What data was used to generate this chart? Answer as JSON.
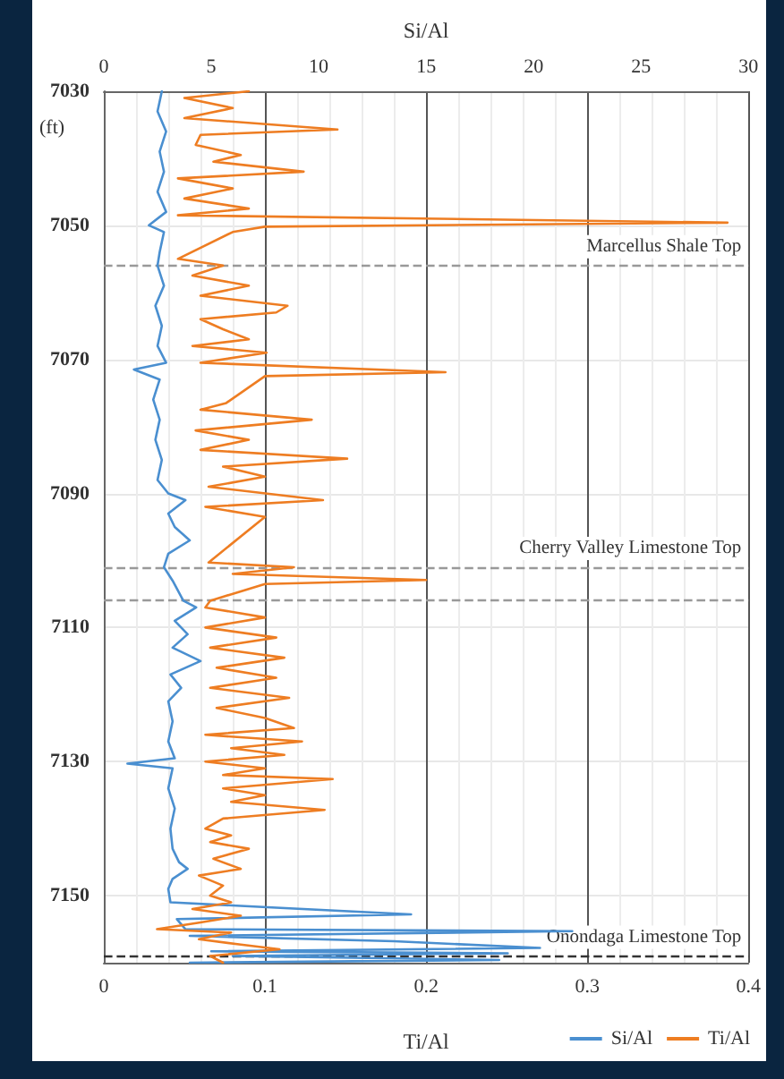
{
  "chart_data": {
    "type": "line",
    "xlabel": "Ti/Al",
    "x2label": "Si/Al",
    "ylabel": "(ft)",
    "xlim": [
      0,
      0.4
    ],
    "xticks": [
      0,
      0.1,
      0.2,
      0.3,
      0.4
    ],
    "x2lim": [
      0,
      30
    ],
    "x2ticks": [
      0,
      5,
      10,
      15,
      20,
      25,
      30
    ],
    "ylim": [
      7160,
      7030
    ],
    "yticks": [
      7030,
      7050,
      7070,
      7090,
      7110,
      7130,
      7150
    ],
    "grid": true,
    "legend": "bottom right",
    "marker": "none",
    "line_style": "solid",
    "series": [
      {
        "name": "Si/Al",
        "color": "#4a8fd0",
        "axis": "x2",
        "x": [
          2.7,
          2.5,
          2.9,
          2.6,
          2.8,
          2.5,
          2.9,
          2.1,
          2.8,
          2.6,
          2.5,
          2.8,
          2.4,
          2.7,
          2.5,
          2.9,
          1.4,
          2.6,
          2.3,
          2.6,
          2.4,
          2.7,
          2.5,
          3.0,
          3.8,
          3.0,
          3.3,
          4.0,
          3.0,
          2.8,
          3.2,
          3.7,
          4.3,
          3.3,
          3.9,
          3.2,
          4.5,
          3.1,
          3.6,
          3.0,
          3.2,
          3.0,
          3.3,
          1.1,
          3.2,
          3.0,
          3.3,
          3.1,
          3.2,
          3.5,
          3.9,
          3.2,
          3.0,
          3.1,
          14.3,
          3.4,
          3.8,
          21.8,
          4.0,
          13.5,
          20.3,
          5.0,
          18.8,
          6.0,
          18.4,
          4.0
        ],
        "values": [
          7030,
          7033,
          7036,
          7039,
          7042,
          7045,
          7048,
          7050,
          7051,
          7054,
          7056,
          7059,
          7062,
          7065,
          7068,
          7070.5,
          7071.5,
          7073,
          7076,
          7079,
          7082,
          7085,
          7088,
          7090,
          7091,
          7093,
          7095,
          7097,
          7099,
          7101,
          7103,
          7106,
          7107,
          7109,
          7111,
          7113,
          7115,
          7117,
          7119,
          7121,
          7124,
          7127,
          7129.5,
          7130.3,
          7131,
          7134,
          7137,
          7140,
          7143,
          7145,
          7146,
          7147.5,
          7149,
          7151,
          7152.8,
          7153.5,
          7155,
          7155.3,
          7156,
          7156.8,
          7157.8,
          7158.3,
          7158.6,
          7159,
          7159.6,
          7160
        ]
      },
      {
        "name": "Ti/Al",
        "color": "#ee7d22",
        "x": [
          0.09,
          0.05,
          0.08,
          0.05,
          0.145,
          0.06,
          0.057,
          0.085,
          0.068,
          0.124,
          0.046,
          0.08,
          0.05,
          0.09,
          0.046,
          0.387,
          0.1,
          0.08,
          0.046,
          0.074,
          0.055,
          0.09,
          0.06,
          0.114,
          0.107,
          0.06,
          0.074,
          0.09,
          0.055,
          0.101,
          0.06,
          0.212,
          0.1,
          0.076,
          0.06,
          0.129,
          0.057,
          0.09,
          0.06,
          0.151,
          0.074,
          0.1,
          0.065,
          0.136,
          0.063,
          0.1,
          0.065,
          0.118,
          0.08,
          0.2,
          0.1,
          0.066,
          0.063,
          0.1,
          0.063,
          0.107,
          0.066,
          0.112,
          0.07,
          0.107,
          0.066,
          0.115,
          0.07,
          0.1,
          0.118,
          0.063,
          0.123,
          0.079,
          0.112,
          0.063,
          0.1,
          0.074,
          0.142,
          0.074,
          0.1,
          0.079,
          0.137,
          0.074,
          0.063,
          0.079,
          0.066,
          0.09,
          0.068,
          0.085,
          0.059,
          0.074,
          0.066,
          0.079,
          0.055,
          0.085,
          0.06,
          0.033,
          0.079,
          0.059,
          0.085,
          0.109,
          0.066,
          0.074
        ],
        "values": [
          7030,
          7031,
          7032.5,
          7034,
          7035.7,
          7036.5,
          7038,
          7039.5,
          7040.5,
          7042,
          7043,
          7044.5,
          7046,
          7047.5,
          7048.5,
          7049.6,
          7050.2,
          7051,
          7055,
          7056,
          7057.5,
          7059,
          7060.5,
          7062,
          7063,
          7064,
          7065.5,
          7067,
          7068,
          7069,
          7070.5,
          7071.9,
          7072.5,
          7076.5,
          7077.5,
          7079,
          7080.6,
          7082,
          7083.5,
          7084.8,
          7086,
          7087.5,
          7089,
          7091,
          7092,
          7093.5,
          7100.3,
          7101,
          7102,
          7102.9,
          7103.5,
          7106,
          7107,
          7108.5,
          7110,
          7111.5,
          7113,
          7114.5,
          7116,
          7117.5,
          7119,
          7120.5,
          7122,
          7123.5,
          7125,
          7126,
          7127,
          7128,
          7129,
          7130,
          7131,
          7132,
          7132.6,
          7134,
          7135,
          7136,
          7137.2,
          7138.5,
          7140,
          7141,
          7142,
          7143,
          7144.5,
          7146,
          7147,
          7148.5,
          7150,
          7151,
          7152,
          7153,
          7154,
          7155,
          7155.5,
          7156.5,
          7157.3,
          7158,
          7159,
          7160
        ]
      }
    ],
    "ref_lines": [
      {
        "axis": "y",
        "value": 7056,
        "label": "Marcellus Shale Top",
        "color": "#999999",
        "line_style": "dashed"
      },
      {
        "axis": "y",
        "value": 7101,
        "label": "Cherry Valley Limestone Top",
        "color": "#999999",
        "line_style": "dashed"
      },
      {
        "axis": "y",
        "value": 7106,
        "label": null,
        "color": "#999999",
        "line_style": "dashed"
      },
      {
        "axis": "y",
        "value": 7159,
        "label": "Onondaga Limestone Top",
        "color": "#333333",
        "line_style": "dashed"
      }
    ]
  }
}
